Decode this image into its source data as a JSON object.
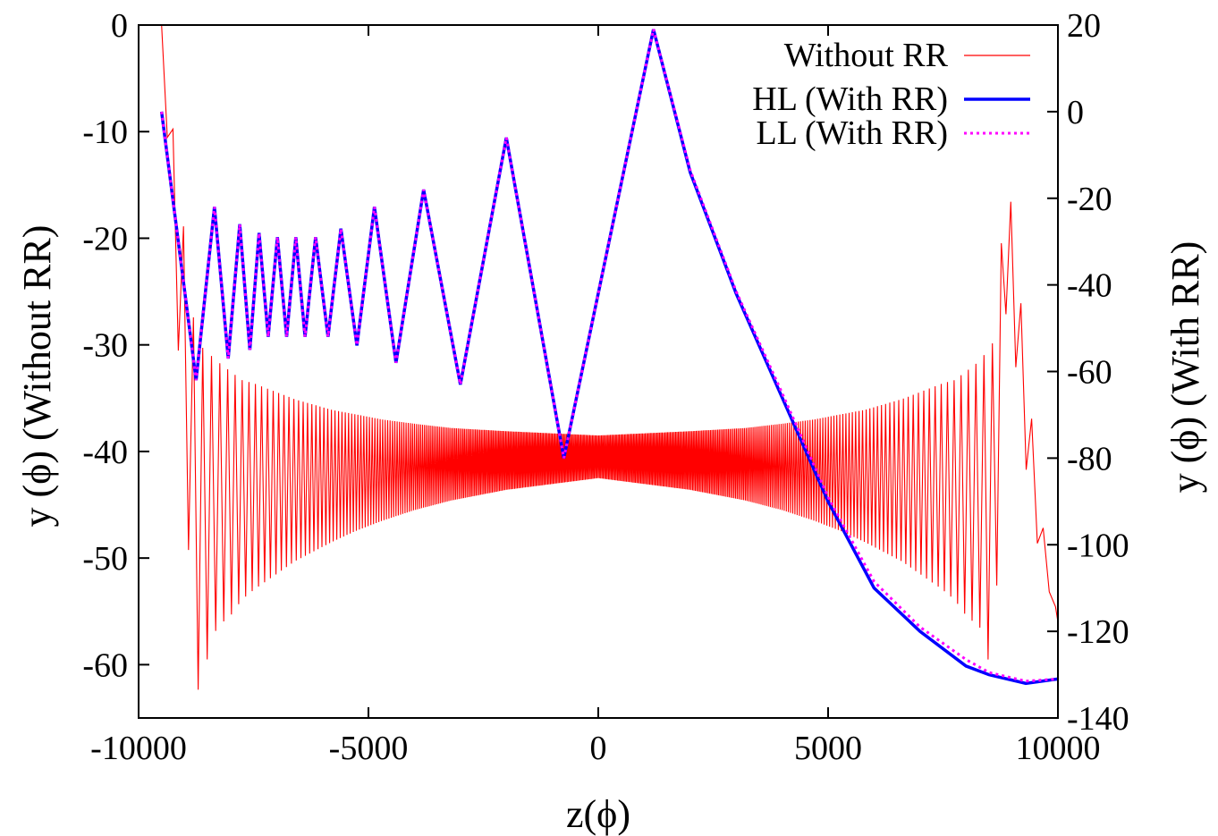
{
  "chart_data": {
    "type": "line",
    "xlabel": "z(ϕ)",
    "ylabel_left": "y (ϕ) (Without RR)",
    "ylabel_right": "y (ϕ) (With RR)",
    "xlim": [
      -10000,
      10000
    ],
    "ylim_left": [
      -65,
      0
    ],
    "ylim_right": [
      -140,
      20
    ],
    "x_ticks": [
      "-10000",
      "-5000",
      "0",
      "5000",
      "10000"
    ],
    "y_left_ticks": [
      "0",
      "-10",
      "-20",
      "-30",
      "-40",
      "-50",
      "-60"
    ],
    "y_right_ticks": [
      "20",
      "0",
      "-20",
      "-40",
      "-60",
      "-80",
      "-100",
      "-120",
      "-140"
    ],
    "legend_position": "top-right",
    "grid": false,
    "series": [
      {
        "name": "Without RR",
        "axis": "left",
        "color": "#ff0000",
        "style": "thin-solid",
        "x": [
          -9500,
          -8750,
          -8300,
          -8000,
          -7750,
          -7500,
          -7200,
          -6900,
          -6600,
          -6200,
          -5800,
          -5300,
          -4700,
          -4000,
          -3200,
          -2000,
          0,
          2000,
          3200,
          4000,
          4700,
          5300,
          5800,
          6200,
          6600,
          6900,
          7200,
          7500,
          7750,
          8000,
          8300,
          8600,
          8900,
          9250,
          9600,
          10000
        ],
        "envelope_upper": [
          0,
          -29.7,
          -31.5,
          -32.5,
          -33.3,
          -33.6,
          -34.1,
          -34.6,
          -35.1,
          -35.6,
          -36.1,
          -36.5,
          -37.0,
          -37.4,
          -37.8,
          -38.1,
          -38.5,
          -38.1,
          -37.8,
          -37.4,
          -37.0,
          -36.5,
          -36.1,
          -35.6,
          -35.1,
          -34.6,
          -34.1,
          -33.6,
          -33.3,
          -32.5,
          -31.5,
          -29.7,
          -13.3,
          -28.5,
          -45,
          -56
        ],
        "envelope_lower": [
          0,
          -63.0,
          -56.5,
          -55.4,
          -53.9,
          -53.0,
          -52.1,
          -51.2,
          -50.3,
          -49.4,
          -48.5,
          -47.5,
          -46.5,
          -45.5,
          -44.6,
          -43.6,
          -42.5,
          -43.6,
          -44.6,
          -45.5,
          -46.5,
          -47.5,
          -48.5,
          -49.4,
          -50.3,
          -51.2,
          -52.1,
          -53.0,
          -53.9,
          -55.4,
          -56.5,
          -61.5,
          -23.4,
          -40,
          -50,
          -56
        ]
      },
      {
        "name": "HL (With RR)",
        "axis": "right",
        "color": "#0000ff",
        "style": "thick-solid",
        "x": [
          -9500,
          -8750,
          -8350,
          -8050,
          -7800,
          -7580,
          -7380,
          -7180,
          -6980,
          -6780,
          -6580,
          -6380,
          -6150,
          -5880,
          -5600,
          -5250,
          -4870,
          -4400,
          -3800,
          -3000,
          -2000,
          -750,
          1200,
          2000,
          3000,
          4000,
          5000,
          6000,
          7000,
          8000,
          8500,
          9300,
          10000
        ],
        "values": [
          0,
          -62,
          -22,
          -57,
          -26,
          -55,
          -28,
          -52,
          -29,
          -52,
          -29,
          -52,
          -29,
          -52,
          -27,
          -54,
          -22,
          -58,
          -18,
          -63,
          -6,
          -80,
          19,
          -14,
          -42,
          -66,
          -90,
          -110,
          -120,
          -128,
          -130,
          -132,
          -131
        ]
      },
      {
        "name": "LL (With RR)",
        "axis": "right",
        "color": "#ff00ff",
        "style": "dotted",
        "x": [
          -9500,
          -8750,
          -8350,
          -8050,
          -7800,
          -7580,
          -7380,
          -7180,
          -6980,
          -6780,
          -6580,
          -6380,
          -6150,
          -5880,
          -5600,
          -5250,
          -4870,
          -4400,
          -3800,
          -3000,
          -2000,
          -750,
          1200,
          2000,
          3000,
          4000,
          5000,
          6000,
          7000,
          8000,
          8500,
          9300,
          10000
        ],
        "values": [
          0,
          -62,
          -22,
          -57,
          -26,
          -55,
          -28,
          -52,
          -29,
          -52,
          -29,
          -52,
          -29,
          -52,
          -27,
          -54,
          -22,
          -58,
          -18,
          -63,
          -6,
          -80,
          19,
          -13.5,
          -41.5,
          -65,
          -89,
          -108.5,
          -119,
          -126.5,
          -129.5,
          -131.5,
          -131
        ]
      }
    ]
  }
}
